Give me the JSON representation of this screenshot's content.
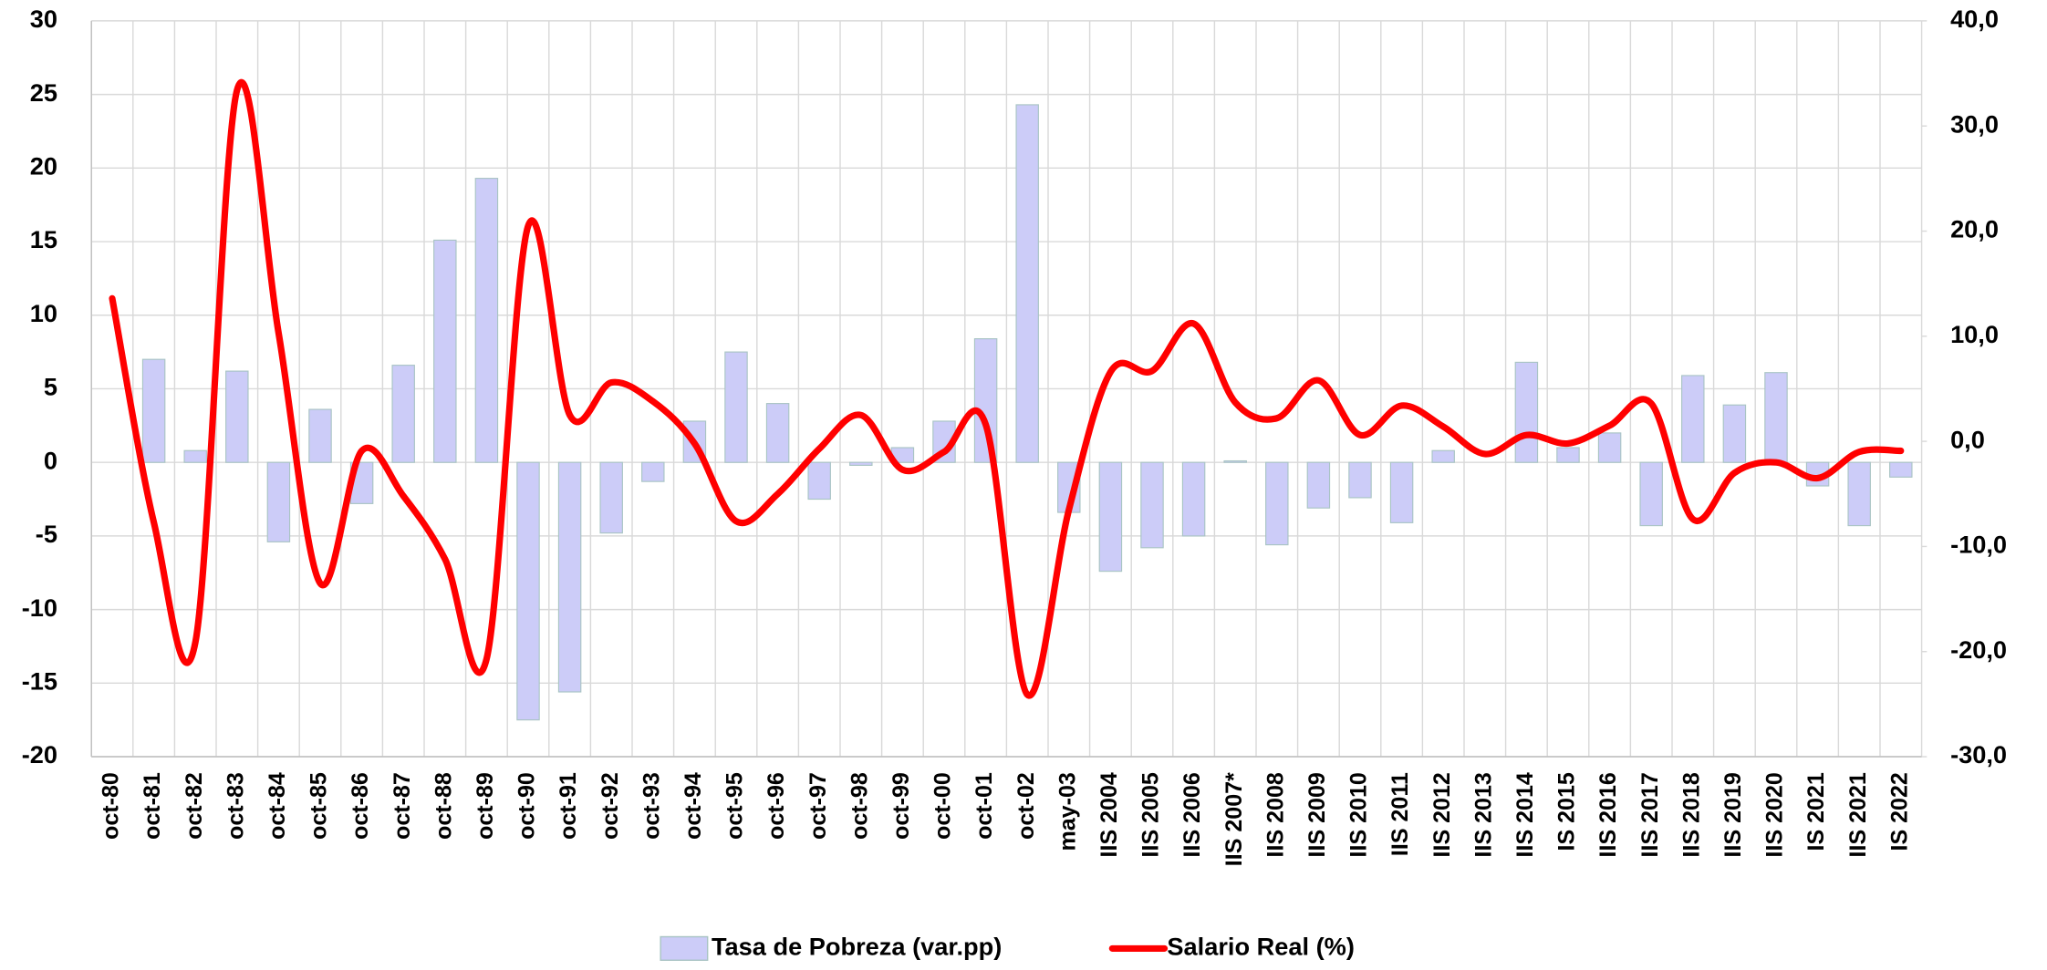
{
  "chart_data": {
    "type": "combo",
    "categories": [
      "oct-80",
      "oct-81",
      "oct-82",
      "oct-83",
      "oct-84",
      "oct-85",
      "oct-86",
      "oct-87",
      "oct-88",
      "oct-89",
      "oct-90",
      "oct-91",
      "oct-92",
      "oct-93",
      "oct-94",
      "oct-95",
      "oct-96",
      "oct-97",
      "oct-98",
      "oct-99",
      "oct-00",
      "oct-01",
      "oct-02",
      "may-03",
      "IIS 2004",
      "IIS 2005",
      "IIS 2006",
      "IIS 2007*",
      "IIS 2008",
      "IIS 2009",
      "IIS 2010",
      "IIS 2011",
      "IIS 2012",
      "IIS 2013",
      "IIS 2014",
      "IS 2015",
      "IIS 2016",
      "IIS 2017",
      "IIS 2018",
      "IIS 2019",
      "IIS 2020",
      "IS 2021",
      "IIS 2021",
      "IS 2022"
    ],
    "series": [
      {
        "name": "Tasa de Pobreza (var.pp)",
        "type": "bar",
        "color": "#ccccf8",
        "values": [
          null,
          7.0,
          0.8,
          6.2,
          -5.4,
          3.6,
          -2.8,
          6.6,
          15.1,
          19.3,
          -17.5,
          -15.6,
          -4.8,
          -1.3,
          2.8,
          7.5,
          4.0,
          -2.5,
          -0.2,
          1.0,
          2.8,
          8.4,
          24.3,
          -3.4,
          -7.4,
          -5.8,
          -5.0,
          0.1,
          -5.6,
          -3.1,
          -2.4,
          -4.1,
          0.8,
          0,
          6.8,
          1.0,
          2.0,
          -4.3,
          5.9,
          3.9,
          6.1,
          -1.6,
          -4.3,
          -1.0
        ]
      },
      {
        "name": "Salario Real (%)",
        "type": "line",
        "color": "#ff0000",
        "axis": "y2",
        "values": [
          13.6,
          -7.7,
          -19.1,
          33.4,
          10.3,
          -13.5,
          -0.9,
          -5.2,
          -11.2,
          -20.7,
          20.5,
          2.5,
          5.6,
          3.8,
          -0.2,
          -7.6,
          -5.0,
          -0.7,
          2.5,
          -2.7,
          -1.0,
          1.6,
          -24.1,
          -6.5,
          6.6,
          6.7,
          11.2,
          3.7,
          2.2,
          5.8,
          0.6,
          3.4,
          1.4,
          -1.2,
          0.6,
          -0.2,
          1.5,
          3.6,
          -7.4,
          -3.0,
          -2.0,
          -3.5,
          -1.0,
          -0.9
        ]
      }
    ],
    "ylim": [
      -20,
      30
    ],
    "yticks": [
      -20,
      -15,
      -10,
      -5,
      0,
      5,
      10,
      15,
      20,
      25,
      30
    ],
    "y2lim": [
      -30,
      40
    ],
    "y2ticks": [
      {
        "value": -30,
        "label": "-30,0"
      },
      {
        "value": -20,
        "label": "-20,0"
      },
      {
        "value": -10,
        "label": "-10,0"
      },
      {
        "value": 0,
        "label": "0,0"
      },
      {
        "value": 10,
        "label": "10,0"
      },
      {
        "value": 20,
        "label": "20,0"
      },
      {
        "value": 30,
        "label": "30,0"
      },
      {
        "value": 40,
        "label": "40,0"
      }
    ],
    "grid": true,
    "legend": "bottom"
  }
}
